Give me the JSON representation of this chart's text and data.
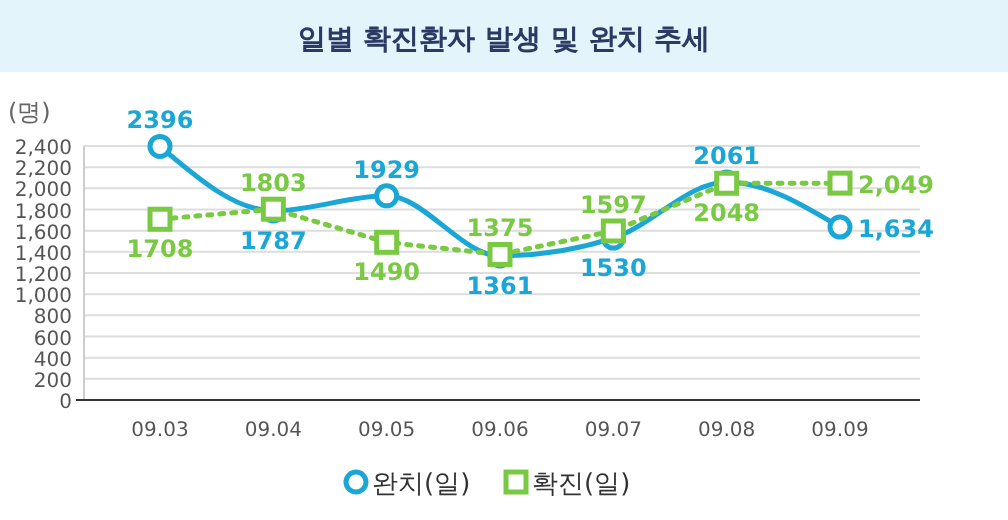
{
  "chart_data": {
    "type": "line",
    "title": "일별 확진환자 발생 및 완치 추세",
    "ylabel": "(명)",
    "categories": [
      "09.03",
      "09.04",
      "09.05",
      "09.06",
      "09.07",
      "09.08",
      "09.09"
    ],
    "series": [
      {
        "name": "완치(일)",
        "color": "#1aa7d6",
        "marker": "circle",
        "line_style": "solid",
        "values": [
          2396,
          1787,
          1929,
          1361,
          1530,
          2061,
          1634
        ],
        "value_labels": [
          "2396",
          "1787",
          "1929",
          "1361",
          "1530",
          "2061",
          "1,634"
        ]
      },
      {
        "name": "확진(일)",
        "color": "#7ac943",
        "marker": "square",
        "line_style": "dotted",
        "values": [
          1708,
          1803,
          1490,
          1375,
          1597,
          2048,
          2049
        ],
        "value_labels": [
          "1708",
          "1803",
          "1490",
          "1375",
          "1597",
          "2048",
          "2,049"
        ]
      }
    ],
    "ylim": [
      0,
      2400
    ],
    "yticks": [
      {
        "value": 0,
        "label": "0"
      },
      {
        "value": 200,
        "label": "200"
      },
      {
        "value": 400,
        "label": "400"
      },
      {
        "value": 600,
        "label": "600"
      },
      {
        "value": 800,
        "label": "800"
      },
      {
        "value": 1000,
        "label": "1,000"
      },
      {
        "value": 1200,
        "label": "1,200"
      },
      {
        "value": 1400,
        "label": "1,400"
      },
      {
        "value": 1600,
        "label": "1,600"
      },
      {
        "value": 1800,
        "label": "1,800"
      },
      {
        "value": 2000,
        "label": "2,000"
      },
      {
        "value": 2200,
        "label": "2,200"
      },
      {
        "value": 2400,
        "label": "2,400"
      }
    ],
    "grid": "y",
    "legend": "bottom"
  }
}
